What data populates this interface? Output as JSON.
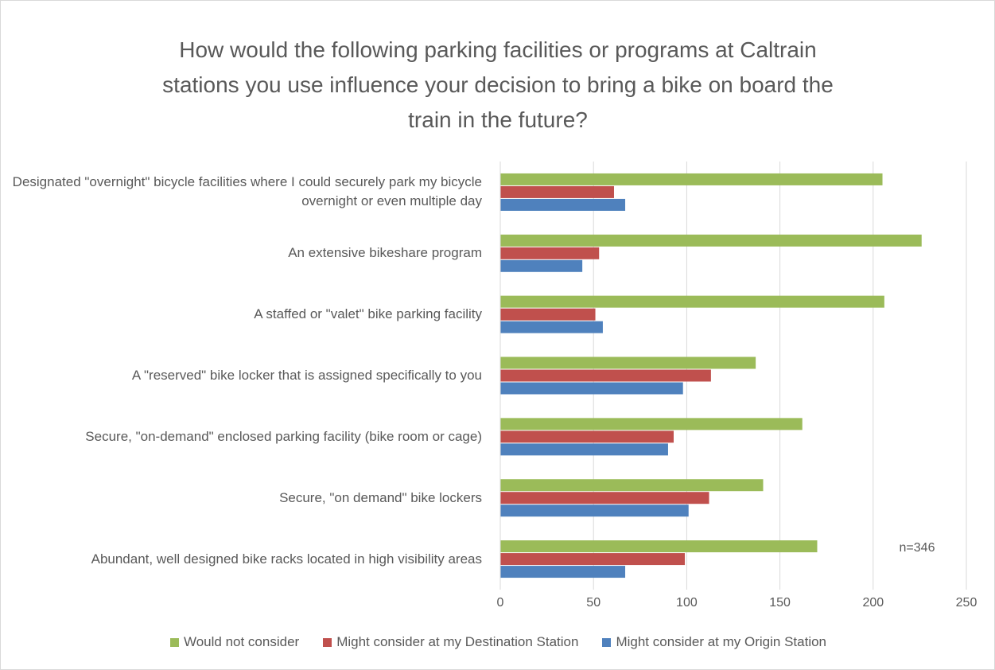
{
  "chart_data": {
    "type": "barh",
    "title": "How would the following parking facilities or programs at Caltrain stations you use influence your decision to bring a bike on board the train in the future?",
    "categories": [
      "Designated \"overnight\" bicycle facilities where I could securely park my bicycle overnight or even multiple day",
      "An extensive bikeshare program",
      "A staffed or \"valet\" bike parking facility",
      "A \"reserved\" bike locker that is assigned specifically to you",
      "Secure, \"on-demand\" enclosed parking facility (bike room or cage)",
      "Secure, \"on demand\" bike lockers",
      "Abundant, well designed bike racks located in high visibility areas"
    ],
    "series": [
      {
        "name": "Would not consider",
        "color": "#9bbb59",
        "values": [
          205,
          226,
          206,
          137,
          162,
          141,
          170
        ]
      },
      {
        "name": "Might consider at my Destination Station",
        "color": "#c0504d",
        "values": [
          61,
          53,
          51,
          113,
          93,
          112,
          99
        ]
      },
      {
        "name": "Might consider at my Origin Station",
        "color": "#4f81bd",
        "values": [
          67,
          44,
          55,
          98,
          90,
          101,
          67
        ]
      }
    ],
    "xlim": [
      0,
      250
    ],
    "xticks": [
      0,
      50,
      100,
      150,
      200,
      250
    ],
    "grid": true,
    "annotation": "n=346",
    "legend": "bottom"
  }
}
